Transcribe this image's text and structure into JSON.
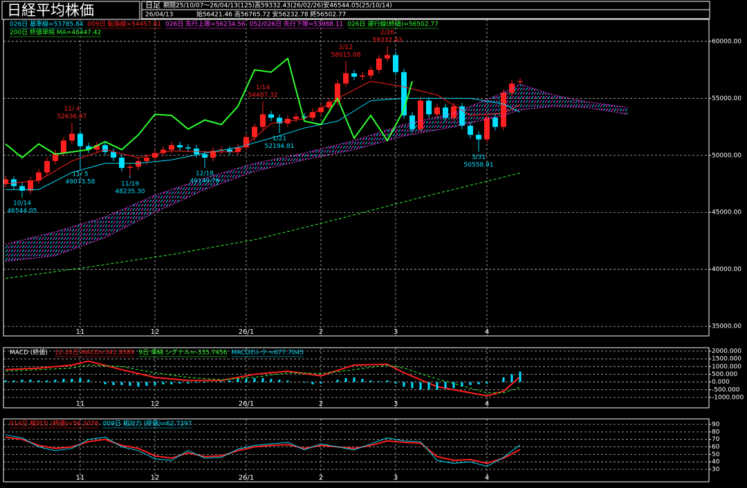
{
  "header": {
    "title": "日経平均株価",
    "period_type": "日足",
    "period": "期間25/10/07～26/04/13(125)高59332.43(26/02/26)安46544.05(25/10/14)",
    "date": "26/04/13",
    "ohlc": "始56421.46 高56765.72 安56232.78 終56502.77"
  },
  "chart_data": [
    {
      "type": "candlestick",
      "xlim": [
        -0.25,
        84.75
      ],
      "ylim": [
        34160,
        61930
      ],
      "yticks": [
        {
          "value": 60000,
          "label": "60000.00"
        },
        {
          "value": 55000,
          "label": "55000.00"
        },
        {
          "value": 50000,
          "label": "50000.00"
        },
        {
          "value": 45000,
          "label": "45000.00"
        },
        {
          "value": 40000,
          "label": "40000.00"
        },
        {
          "value": 35000,
          "label": "35000.00"
        }
      ],
      "xticks": [
        {
          "value": 9,
          "label": "11"
        },
        {
          "value": 18,
          "label": "12"
        },
        {
          "value": 29,
          "label": "26/1"
        },
        {
          "value": 38,
          "label": "2"
        },
        {
          "value": 47,
          "label": "3"
        },
        {
          "value": 58,
          "label": "4"
        }
      ],
      "grid": true,
      "up_color": "#ff2020",
      "down_color": "#00e0ff",
      "candles": {
        "open": [
          47500,
          47900,
          47300,
          46900,
          47800,
          48500,
          49500,
          50200,
          51300,
          51900,
          50800,
          50500,
          50900,
          50300,
          49800,
          48900,
          49000,
          49500,
          49800,
          50200,
          50500,
          50900,
          50700,
          50600,
          50100,
          49800,
          50400,
          50500,
          50300,
          50700,
          51600,
          52500,
          53600,
          53300,
          52800,
          53200,
          53400,
          53300,
          53800,
          54200,
          54700,
          56300,
          57200,
          56900,
          57000,
          57500,
          58500,
          58800,
          57300,
          53500,
          52300,
          54800,
          53600,
          54200,
          53300,
          54300,
          52600,
          51800,
          51400,
          53300,
          52500,
          55500,
          56421.46
        ],
        "high": [
          48200,
          48200,
          47600,
          48100,
          48800,
          49800,
          50500,
          51600,
          52636.87,
          52200,
          51100,
          51200,
          51200,
          50600,
          50100,
          49300,
          49800,
          50100,
          50500,
          50800,
          51200,
          51200,
          51000,
          50900,
          50400,
          50700,
          50800,
          50800,
          51000,
          51900,
          52800,
          54487.32,
          53900,
          53600,
          53500,
          53700,
          53700,
          54100,
          54500,
          55000,
          56600,
          58015.08,
          57500,
          57300,
          57800,
          58800,
          59332.43,
          59100,
          57600,
          53800,
          55100,
          55100,
          54500,
          54500,
          54600,
          54600,
          52900,
          52100,
          53600,
          53600,
          55800,
          56600,
          56765.72
        ],
        "low": [
          47200,
          47000,
          46544.05,
          46600,
          47500,
          48200,
          49200,
          49900,
          51000,
          49073.58,
          50200,
          50200,
          50000,
          49500,
          48600,
          48235.3,
          48700,
          49200,
          49500,
          49900,
          50200,
          50400,
          50300,
          49800,
          49149.79,
          49500,
          50100,
          50000,
          50000,
          50400,
          51300,
          52200,
          53000,
          52194.81,
          52500,
          52900,
          53000,
          53000,
          53500,
          53900,
          54400,
          56000,
          56600,
          56600,
          56700,
          57200,
          58200,
          57000,
          53200,
          52000,
          52000,
          53300,
          53300,
          53000,
          53000,
          52300,
          51500,
          50558.91,
          51100,
          52200,
          52200,
          55200,
          56232.78
        ],
        "close": [
          47900,
          47300,
          46900,
          47800,
          48500,
          49500,
          50200,
          51300,
          51900,
          50800,
          50500,
          50900,
          50300,
          49800,
          48900,
          49000,
          49500,
          49800,
          50200,
          50500,
          50900,
          50700,
          50600,
          50100,
          49800,
          50400,
          50500,
          50300,
          50700,
          51600,
          52500,
          53600,
          53300,
          52800,
          53200,
          53400,
          53300,
          53800,
          54200,
          54700,
          56300,
          57200,
          56900,
          57000,
          57500,
          58500,
          58800,
          57300,
          53500,
          52300,
          54800,
          53600,
          54200,
          53300,
          54300,
          52600,
          51800,
          51400,
          53300,
          52500,
          55500,
          56300,
          56502.77
        ]
      },
      "series": [
        {
          "name": "026日 基準線=53785.84",
          "color": "#00e0ff",
          "style": "solid",
          "x": [
            0,
            4,
            8,
            12,
            16,
            20,
            24,
            28,
            32,
            36,
            40,
            44,
            48,
            52,
            56,
            60,
            62
          ],
          "values": [
            47000,
            47000,
            48500,
            49300,
            49300,
            49600,
            50200,
            50700,
            51500,
            52400,
            53000,
            54800,
            55000,
            55000,
            55000,
            54500,
            53785.84
          ]
        },
        {
          "name": "009日 転換線=54457.81",
          "color": "#ff2020",
          "style": "solid",
          "x": [
            0,
            4,
            8,
            12,
            16,
            20,
            24,
            28,
            32,
            36,
            40,
            44,
            48,
            52,
            56,
            60,
            62
          ],
          "values": [
            47500,
            47800,
            49500,
            50500,
            49800,
            50400,
            50300,
            50300,
            52800,
            53200,
            55000,
            56500,
            56000,
            55300,
            53500,
            53700,
            54457.81
          ]
        },
        {
          "name": "026日 先行上限=56234.56",
          "color": "#ff40ff",
          "style": "cloud",
          "x": [
            0,
            6,
            12,
            18,
            24,
            30,
            36,
            42,
            48,
            54,
            60,
            62,
            66,
            70,
            75
          ],
          "values": [
            42200,
            43300,
            44600,
            46500,
            48000,
            49300,
            50200,
            51300,
            52700,
            53700,
            55500,
            56234.56,
            55300,
            54700,
            54200
          ]
        },
        {
          "name": "052/026日 先行下限=53988.11",
          "color": "#ff40ff",
          "style": "cloud",
          "x": [
            0,
            6,
            12,
            18,
            24,
            30,
            36,
            42,
            48,
            54,
            60,
            62,
            66,
            70,
            75
          ],
          "values": [
            40700,
            41200,
            42800,
            45000,
            47000,
            48600,
            49600,
            50500,
            51700,
            52500,
            53500,
            53988.11,
            54300,
            54200,
            53600
          ]
        },
        {
          "name": "026日 遅行線(終値)=56502.77",
          "color": "#30ff30",
          "style": "thick",
          "x": [
            0,
            2,
            4,
            6,
            8,
            10,
            12,
            14,
            16,
            18,
            20,
            22,
            24,
            26,
            28,
            30,
            32,
            34,
            36,
            38,
            40,
            42,
            44,
            46,
            48,
            49
          ],
          "values": [
            51000,
            49800,
            51000,
            50100,
            50300,
            50500,
            51200,
            50500,
            51800,
            53600,
            53500,
            52300,
            53100,
            52700,
            54300,
            57500,
            57300,
            58500,
            53000,
            52700,
            55000,
            51500,
            53500,
            51300,
            54000,
            56502.77
          ]
        },
        {
          "name": "200日 終値単純 MA=48447.42",
          "color": "#30ff30",
          "style": "dashed",
          "x": [
            0,
            10,
            20,
            30,
            40,
            50,
            62
          ],
          "values": [
            39200,
            40200,
            41300,
            42600,
            44400,
            46300,
            48447.42
          ]
        }
      ],
      "annotations": [
        {
          "x": 2,
          "value": 46544.05,
          "date": "10/14",
          "label": "46544.05"
        },
        {
          "x": 8,
          "value": 52636.87,
          "date": "11/ 4",
          "label": "52636.87"
        },
        {
          "x": 9,
          "value": 49073.58,
          "date": "11/ 5",
          "label": "49073.58"
        },
        {
          "x": 15,
          "value": 48235.3,
          "date": "11/19",
          "label": "48235.30"
        },
        {
          "x": 24,
          "value": 49149.79,
          "date": "12/18",
          "label": "49149.79"
        },
        {
          "x": 31,
          "value": 54487.32,
          "date": "1/14",
          "label": "54487.32"
        },
        {
          "x": 33,
          "value": 52194.81,
          "date": "1/21",
          "label": "52194.81"
        },
        {
          "x": 41,
          "value": 58015.08,
          "date": "2/12",
          "label": "58015.08"
        },
        {
          "x": 46,
          "value": 59332.43,
          "date": "2/26",
          "label": "59332.43"
        },
        {
          "x": 57,
          "value": 50558.91,
          "date": "3/31",
          "label": "50558.91"
        }
      ]
    },
    {
      "type": "line",
      "title": "MACD (終値)",
      "xlim": [
        -0.25,
        84.75
      ],
      "ylim": [
        -1672,
        2224
      ],
      "yticks": [
        {
          "value": 2000,
          "label": "2000.000"
        },
        {
          "value": 1500,
          "label": "1500.000"
        },
        {
          "value": 1000,
          "label": "1000.000"
        },
        {
          "value": 500,
          "label": "500.000"
        },
        {
          "value": 0,
          "label": "0.000"
        },
        {
          "value": -500,
          "label": "-500.000"
        },
        {
          "value": -1000,
          "label": "-1000.000"
        }
      ],
      "xticks": [
        {
          "value": 9,
          "label": "11"
        },
        {
          "value": 18,
          "label": "12"
        },
        {
          "value": 29,
          "label": "26/1"
        },
        {
          "value": 38,
          "label": "2"
        },
        {
          "value": 47,
          "label": "3"
        },
        {
          "value": 58,
          "label": "4"
        }
      ],
      "grid": true,
      "series": [
        {
          "name": "12-26日 MACD=341.9589",
          "color": "#ff2020",
          "style": "thick",
          "x": [
            0,
            4,
            8,
            10,
            14,
            18,
            22,
            26,
            30,
            34,
            38,
            42,
            46,
            48,
            52,
            56,
            58,
            60,
            62
          ],
          "values": [
            800,
            900,
            1100,
            1350,
            800,
            300,
            100,
            100,
            500,
            700,
            400,
            1100,
            1150,
            600,
            -300,
            -700,
            -900,
            -600,
            341.9589
          ]
        },
        {
          "name": "9日 単純 シグナル=-335.7456",
          "color": "#30ff30",
          "style": "dashed",
          "x": [
            0,
            4,
            8,
            10,
            14,
            18,
            22,
            26,
            30,
            34,
            38,
            42,
            46,
            48,
            52,
            56,
            58,
            60,
            62
          ],
          "values": [
            700,
            800,
            900,
            1100,
            1000,
            600,
            300,
            150,
            300,
            600,
            550,
            800,
            1100,
            900,
            200,
            -400,
            -700,
            -700,
            -335.7456
          ]
        },
        {
          "name": "MACDｵｼﾚｰﾀｰ=677.7045",
          "color": "#00e0ff",
          "style": "bar",
          "values": [
            100,
            100,
            150,
            150,
            100,
            100,
            150,
            200,
            200,
            250,
            150,
            0,
            -150,
            -200,
            -200,
            -250,
            -300,
            -250,
            -200,
            -150,
            -150,
            -100,
            -100,
            -50,
            -50,
            0,
            50,
            100,
            200,
            200,
            250,
            250,
            200,
            150,
            100,
            0,
            -50,
            -150,
            -100,
            0,
            150,
            250,
            300,
            200,
            100,
            50,
            100,
            -100,
            -300,
            -400,
            -500,
            -500,
            -500,
            -400,
            -400,
            -300,
            -200,
            -150,
            -100,
            0,
            300,
            500,
            677.7045
          ]
        }
      ]
    },
    {
      "type": "line",
      "xlim": [
        -0.25,
        84.75
      ],
      "ylim": [
        13.4,
        97.4
      ],
      "yticks": [
        90,
        80,
        70,
        60,
        50,
        40,
        30
      ],
      "xticks": [
        {
          "value": 9,
          "label": "11"
        },
        {
          "value": 18,
          "label": "12"
        },
        {
          "value": 29,
          "label": "26/1"
        },
        {
          "value": 38,
          "label": "2"
        },
        {
          "value": 47,
          "label": "3"
        },
        {
          "value": 58,
          "label": "4"
        }
      ],
      "grid": true,
      "series": [
        {
          "name": "014日 相対力 (終値)=56.3076",
          "color": "#ff2020",
          "style": "thick",
          "x": [
            0,
            2,
            4,
            6,
            8,
            10,
            12,
            14,
            16,
            18,
            20,
            22,
            24,
            26,
            28,
            30,
            32,
            34,
            36,
            38,
            40,
            42,
            44,
            46,
            48,
            50,
            52,
            54,
            56,
            58,
            60,
            62
          ],
          "values": [
            73,
            70,
            62,
            58,
            60,
            67,
            70,
            62,
            58,
            48,
            45,
            52,
            47,
            48,
            55,
            60,
            62,
            63,
            58,
            62,
            60,
            58,
            62,
            68,
            66,
            65,
            47,
            42,
            43,
            38,
            45,
            56.3076
          ]
        },
        {
          "name": "009日 相対力 (終値)=62.7297",
          "color": "#00e0ff",
          "style": "solid",
          "x": [
            0,
            2,
            4,
            6,
            8,
            10,
            12,
            14,
            16,
            18,
            20,
            22,
            24,
            26,
            28,
            30,
            32,
            34,
            36,
            38,
            40,
            42,
            44,
            46,
            48,
            50,
            52,
            54,
            56,
            58,
            60,
            62
          ],
          "values": [
            76,
            72,
            60,
            55,
            58,
            70,
            73,
            60,
            55,
            44,
            42,
            55,
            45,
            46,
            57,
            62,
            64,
            66,
            56,
            64,
            60,
            56,
            64,
            72,
            68,
            67,
            42,
            38,
            40,
            34,
            46,
            62.7297
          ]
        }
      ]
    }
  ]
}
